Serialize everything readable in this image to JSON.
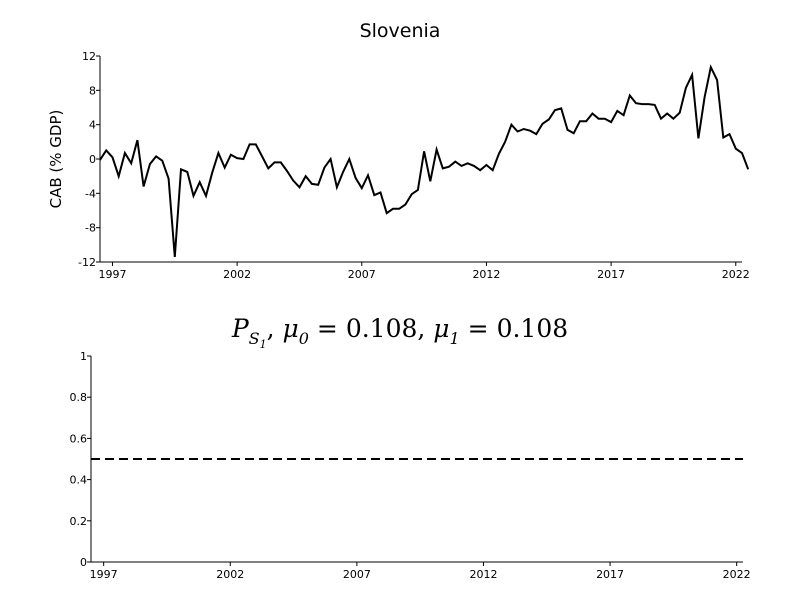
{
  "chart_data": [
    {
      "type": "line",
      "title": "Slovenia",
      "xlabel": "",
      "ylabel": "CAB (% GDP)",
      "xlim": [
        1996.5,
        2022.25
      ],
      "ylim": [
        -12,
        12
      ],
      "x_ticks": [
        1997,
        2002,
        2007,
        2012,
        2017,
        2022
      ],
      "y_ticks": [
        -12,
        -8,
        -4,
        0,
        4,
        8,
        12
      ],
      "grid": false,
      "series": [
        {
          "color": "#000000",
          "x_start": 1996.5,
          "x_step": 0.25,
          "values": [
            -0.1,
            1.0,
            0.2,
            -2.0,
            0.7,
            -0.5,
            2.2,
            -3.2,
            -0.6,
            0.3,
            -0.2,
            -2.3,
            -11.4,
            -1.2,
            -1.5,
            -4.3,
            -2.7,
            -4.3,
            -1.6,
            0.7,
            -1.0,
            0.5,
            0.1,
            0.0,
            1.7,
            1.7,
            0.3,
            -1.1,
            -0.4,
            -0.4,
            -1.4,
            -2.5,
            -3.3,
            -2.0,
            -2.9,
            -3.0,
            -1.0,
            0.0,
            -3.3,
            -1.5,
            0.0,
            -2.2,
            -3.4,
            -1.9,
            -4.2,
            -3.9,
            -6.3,
            -5.8,
            -5.8,
            -5.3,
            -4.1,
            -3.6,
            0.9,
            -2.6,
            1.1,
            -1.1,
            -0.9,
            -0.3,
            -0.8,
            -0.5,
            -0.8,
            -1.3,
            -0.7,
            -1.3,
            0.6,
            2.0,
            4.0,
            3.2,
            3.5,
            3.3,
            2.9,
            4.1,
            4.6,
            5.7,
            5.9,
            3.4,
            3.0,
            4.4,
            4.4,
            5.3,
            4.7,
            4.7,
            4.3,
            5.6,
            5.1,
            7.4,
            6.5,
            6.4,
            6.4,
            6.3,
            4.7,
            5.3,
            4.7,
            5.4,
            8.3,
            9.8,
            2.4,
            7.2,
            10.7,
            9.2,
            2.5,
            2.9,
            1.2,
            0.7,
            -1.2
          ]
        }
      ]
    },
    {
      "type": "line",
      "title": "P_{S_1}, μ_0 = 0.108, μ_1 = 0.108",
      "xlabel": "",
      "ylabel": "",
      "xlim": [
        1996.5,
        2022.25
      ],
      "ylim": [
        0,
        1
      ],
      "x_ticks": [
        1997,
        2002,
        2007,
        2012,
        2017,
        2022
      ],
      "y_ticks": [
        0,
        0.2,
        0.4,
        0.6,
        0.8,
        1
      ],
      "grid": false,
      "series": [
        {
          "color": "#000000",
          "style": "dashed",
          "x": [
            1996.5,
            2022.25
          ],
          "values": [
            0.5,
            0.5
          ]
        }
      ]
    }
  ],
  "math_title_parts": {
    "P": "P",
    "S": "S",
    "one": "1",
    "mu": "μ",
    "zero": "0",
    "eq0": " = 0.108, ",
    "eq1": " = 0.108",
    "comma": ", "
  }
}
